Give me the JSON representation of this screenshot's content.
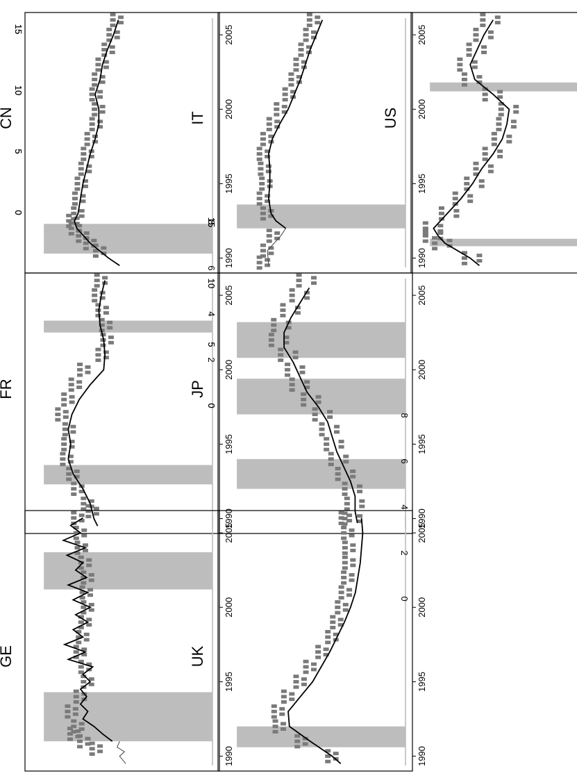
{
  "chart_data": [
    {
      "type": "scatter",
      "title": "CN",
      "ylim": [
        0,
        15
      ],
      "yticks": [
        0,
        5,
        10,
        15
      ],
      "xticks": [
        1990,
        1995,
        2000,
        2005
      ],
      "bands": [
        [
          1990.3,
          1992.3
        ]
      ],
      "points": [
        [
          1990.5,
          9.2
        ],
        [
          1991,
          10
        ],
        [
          1991.5,
          10.6
        ],
        [
          1992,
          11.2
        ],
        [
          1992.5,
          11.4
        ],
        [
          1993,
          11
        ],
        [
          1994,
          10.9
        ],
        [
          1995,
          10.7
        ],
        [
          1996,
          10.4
        ],
        [
          1997,
          10.2
        ],
        [
          1998,
          9.9
        ],
        [
          1999,
          9.5
        ],
        [
          2000,
          9.3
        ],
        [
          2001,
          9.5
        ],
        [
          2002,
          9.3
        ],
        [
          2003,
          9
        ],
        [
          2004,
          8.5
        ],
        [
          2005,
          8.1
        ],
        [
          2006,
          7.8
        ]
      ],
      "line": [
        [
          1989.5,
          7.6
        ],
        [
          1990,
          8.5
        ],
        [
          1991,
          10
        ],
        [
          1992,
          11.1
        ],
        [
          1992.5,
          11.3
        ],
        [
          1993,
          11
        ],
        [
          1994,
          10.8
        ],
        [
          1995,
          10.6
        ],
        [
          1996,
          10.3
        ],
        [
          1997,
          10
        ],
        [
          1998,
          9.6
        ],
        [
          1999,
          9.3
        ],
        [
          2000,
          9.3
        ],
        [
          2001,
          9.6
        ],
        [
          2002,
          9.2
        ],
        [
          2003,
          9
        ],
        [
          2004,
          8.6
        ],
        [
          2005,
          8.1
        ],
        [
          2006,
          7.7
        ]
      ],
      "thinline": []
    },
    {
      "type": "scatter",
      "title": "FR",
      "ylim": [
        0,
        15
      ],
      "yticks": [
        0,
        5,
        10,
        15
      ],
      "xticks": [
        1990,
        1995,
        2000,
        2005
      ],
      "bands": [
        [
          1992.3,
          1993.6
        ],
        [
          2002.5,
          2003.3
        ]
      ],
      "points": [
        [
          1990.5,
          9.8
        ],
        [
          1991,
          10.2
        ],
        [
          1992,
          11
        ],
        [
          1993,
          11.4
        ],
        [
          1994,
          11.9
        ],
        [
          1995,
          11.8
        ],
        [
          1996,
          11.7
        ],
        [
          1997,
          12.3
        ],
        [
          1998,
          11.8
        ],
        [
          1999,
          11.2
        ],
        [
          2000,
          10.5
        ],
        [
          2001,
          9
        ],
        [
          2002,
          8.6
        ],
        [
          2003,
          8.7
        ],
        [
          2004,
          9
        ],
        [
          2005,
          9.3
        ],
        [
          2006,
          9.1
        ]
      ],
      "line": [
        [
          1989.5,
          9.4
        ],
        [
          1990,
          9.7
        ],
        [
          1991,
          10
        ],
        [
          1992,
          10.6
        ],
        [
          1993,
          11.4
        ],
        [
          1994,
          11.8
        ],
        [
          1995,
          11.6
        ],
        [
          1996,
          11.8
        ],
        [
          1997,
          11.5
        ],
        [
          1998,
          10.9
        ],
        [
          1999,
          10
        ],
        [
          2000,
          8.9
        ],
        [
          2001,
          8.8
        ],
        [
          2002,
          8.9
        ],
        [
          2003,
          9.2
        ],
        [
          2004,
          9.3
        ],
        [
          2005,
          9.1
        ],
        [
          2006,
          8.8
        ]
      ],
      "thinline": []
    },
    {
      "type": "scatter",
      "title": "GE",
      "ylim": [
        0,
        15
      ],
      "yticks": [
        0,
        5,
        10,
        15
      ],
      "xticks": [
        1990,
        1995,
        2000,
        2005
      ],
      "bands": [
        [
          1991,
          1994.3
        ],
        [
          2001.2,
          2003.7
        ]
      ],
      "points": [
        [
          1990.5,
          9.5
        ],
        [
          1991,
          10.5
        ],
        [
          1991.5,
          11.3
        ],
        [
          1992,
          11
        ],
        [
          1993,
          11.5
        ],
        [
          1994,
          10.8
        ],
        [
          1995,
          10.2
        ],
        [
          1996,
          10.4
        ],
        [
          1997,
          10.8
        ],
        [
          1998,
          10.6
        ],
        [
          1999,
          10.4
        ],
        [
          2000,
          10.2
        ],
        [
          2001,
          10.3
        ],
        [
          2002,
          10.2
        ],
        [
          2003,
          10.4
        ],
        [
          2004,
          10.7
        ],
        [
          2005,
          10.8
        ],
        [
          2006,
          11
        ]
      ],
      "line": [
        [
          1991,
          8.2
        ],
        [
          1991.5,
          9
        ],
        [
          1992,
          9.7
        ],
        [
          1992.5,
          10.6
        ],
        [
          1993,
          10.2
        ],
        [
          1993.5,
          10.8
        ],
        [
          1994,
          10.3
        ],
        [
          1994.5,
          10.8
        ],
        [
          1995,
          10
        ],
        [
          1995.5,
          10.6
        ],
        [
          1996,
          9.8
        ],
        [
          1996.5,
          11.8
        ],
        [
          1997,
          10.4
        ],
        [
          1997.5,
          12.1
        ],
        [
          1998,
          10.6
        ],
        [
          1998.5,
          11.4
        ],
        [
          1999,
          10.2
        ],
        [
          1999.5,
          11.2
        ],
        [
          2000,
          10
        ],
        [
          2000.5,
          11.4
        ],
        [
          2001,
          10.2
        ],
        [
          2001.5,
          11.8
        ],
        [
          2002,
          10.3
        ],
        [
          2002.5,
          11.2
        ],
        [
          2003,
          10.6
        ],
        [
          2003.5,
          11.9
        ],
        [
          2004,
          10.4
        ],
        [
          2004.5,
          12.2
        ],
        [
          2005,
          10.8
        ],
        [
          2005.5,
          11.6
        ],
        [
          2006,
          10.6
        ]
      ],
      "thinline": [
        [
          1989.5,
          7.1
        ],
        [
          1990,
          7.6
        ],
        [
          1990.3,
          7.2
        ],
        [
          1990.6,
          7.8
        ],
        [
          1991,
          7.6
        ]
      ]
    },
    {
      "type": "scatter",
      "title": "IT",
      "ylim": [
        0,
        15
      ],
      "yticks": [
        0,
        5,
        10,
        15
      ],
      "xticks": [
        1990,
        1995,
        2000,
        2005
      ],
      "bands": [
        [
          1992,
          1993.6
        ]
      ],
      "points": [
        [
          1989.7,
          11.6
        ],
        [
          1990.5,
          11.3
        ],
        [
          1991.5,
          10.8
        ],
        [
          1993,
          11.3
        ],
        [
          1994,
          11.6
        ],
        [
          1995,
          11.4
        ],
        [
          1996,
          11.5
        ],
        [
          1997,
          11.6
        ],
        [
          1998,
          11.3
        ],
        [
          1999,
          10.8
        ],
        [
          2000,
          10.2
        ],
        [
          2001,
          9.5
        ],
        [
          2002,
          9
        ],
        [
          2003,
          8.6
        ],
        [
          2004,
          8.2
        ],
        [
          2005,
          7.8
        ],
        [
          2006,
          7.5
        ]
      ],
      "line": [
        [
          1992,
          9.8
        ],
        [
          1992.5,
          10.6
        ],
        [
          1993,
          11
        ],
        [
          1994,
          11.2
        ],
        [
          1995,
          11.1
        ],
        [
          1996,
          11.1
        ],
        [
          1997,
          11.2
        ],
        [
          1998,
          10.9
        ],
        [
          1999,
          10.3
        ],
        [
          2000,
          9.6
        ],
        [
          2001,
          9.1
        ],
        [
          2002,
          8.6
        ],
        [
          2003,
          8.2
        ],
        [
          2004,
          7.8
        ],
        [
          2005,
          7.3
        ],
        [
          2006,
          6.8
        ]
      ],
      "thinline": [
        [
          1989.5,
          11.2
        ],
        [
          1990.5,
          11.3
        ],
        [
          1991.5,
          10.2
        ],
        [
          1992,
          9.8
        ]
      ]
    },
    {
      "type": "scatter",
      "title": "JP",
      "ylim": [
        0,
        8
      ],
      "yticks": [
        0,
        2,
        4,
        6,
        8
      ],
      "xticks": [
        1990,
        1995,
        2000,
        2005
      ],
      "bands": [
        [
          1992,
          1994
        ],
        [
          1997,
          1999.4
        ],
        [
          2000.8,
          2003.2
        ]
      ],
      "points": [
        [
          1990,
          2.3
        ],
        [
          1991,
          2.2
        ],
        [
          1992,
          2.3
        ],
        [
          1993,
          2.6
        ],
        [
          1994,
          2.9
        ],
        [
          1995,
          3.1
        ],
        [
          1996,
          3.3
        ],
        [
          1997,
          3.6
        ],
        [
          1998,
          4.1
        ],
        [
          1999,
          4.6
        ],
        [
          2000,
          4.8
        ],
        [
          2001,
          5.1
        ],
        [
          2002,
          5.5
        ],
        [
          2003,
          5.4
        ],
        [
          2004,
          5
        ],
        [
          2005,
          4.6
        ],
        [
          2006,
          4.3
        ]
      ],
      "line": [
        [
          1989.7,
          2.1
        ],
        [
          1990.5,
          2.2
        ],
        [
          1991.5,
          2.2
        ],
        [
          1992.5,
          2.4
        ],
        [
          1993.5,
          2.7
        ],
        [
          1994.5,
          3
        ],
        [
          1995.5,
          3.2
        ],
        [
          1996.5,
          3.4
        ],
        [
          1997.5,
          3.8
        ],
        [
          1998.5,
          4.3
        ],
        [
          1999.5,
          4.6
        ],
        [
          2000.5,
          4.9
        ],
        [
          2001.5,
          5.3
        ],
        [
          2002.5,
          5.3
        ],
        [
          2003.5,
          5
        ],
        [
          2004.5,
          4.6
        ],
        [
          2005.5,
          4.2
        ]
      ],
      "thinline": []
    },
    {
      "type": "scatter",
      "title": "UK",
      "ylim": [
        0,
        15
      ],
      "yticks": [
        0,
        5,
        10,
        15
      ],
      "xticks": [
        1990,
        1995,
        2000,
        2005
      ],
      "bands": [
        [
          1990.6,
          1992
        ]
      ],
      "points": [
        [
          1990,
          6
        ],
        [
          1991,
          8.5
        ],
        [
          1992,
          10.3
        ],
        [
          1993,
          10.4
        ],
        [
          1994,
          9.6
        ],
        [
          1995,
          8.6
        ],
        [
          1996,
          7.8
        ],
        [
          1997,
          6.8
        ],
        [
          1998,
          6
        ],
        [
          1999,
          5.6
        ],
        [
          2000,
          5.2
        ],
        [
          2001,
          4.9
        ],
        [
          2002,
          4.7
        ],
        [
          2003,
          4.6
        ],
        [
          2004,
          4.6
        ],
        [
          2005,
          4.7
        ],
        [
          2006,
          4.9
        ]
      ],
      "line": [
        [
          1989.5,
          5.3
        ],
        [
          1990,
          6
        ],
        [
          1991,
          7.8
        ],
        [
          1992,
          9.5
        ],
        [
          1993,
          9.6
        ],
        [
          1994,
          8.6
        ],
        [
          1995,
          7.6
        ],
        [
          1996,
          6.9
        ],
        [
          1997,
          6.2
        ],
        [
          1998,
          5.6
        ],
        [
          1999,
          5
        ],
        [
          2000,
          4.5
        ],
        [
          2001,
          4.1
        ],
        [
          2002,
          3.9
        ],
        [
          2003,
          3.7
        ],
        [
          2004,
          3.6
        ],
        [
          2005,
          3.5
        ],
        [
          2006,
          3.6
        ]
      ],
      "thinline": []
    },
    {
      "type": "scatter",
      "title": "US",
      "ylim": [
        0,
        8
      ],
      "yticks": [
        0,
        2,
        4,
        6,
        8
      ],
      "xticks": [
        1990,
        1995,
        2000,
        2005
      ],
      "bands": [
        [
          1990.8,
          1991.3
        ],
        [
          2001.2,
          2001.8
        ]
      ],
      "points": [
        [
          1990,
          5.5
        ],
        [
          1991,
          6.8
        ],
        [
          1991.5,
          7.2
        ],
        [
          1992,
          7.2
        ],
        [
          1993,
          6.5
        ],
        [
          1994,
          5.9
        ],
        [
          1995,
          5.4
        ],
        [
          1996,
          5
        ],
        [
          1997,
          4.6
        ],
        [
          1998,
          4.2
        ],
        [
          1999,
          4
        ],
        [
          2000,
          3.9
        ],
        [
          2001,
          4.6
        ],
        [
          2002,
          5.5
        ],
        [
          2003,
          5.7
        ],
        [
          2004,
          5.3
        ],
        [
          2005,
          5
        ],
        [
          2006,
          4.7
        ]
      ],
      "line": [
        [
          1989.5,
          5.2
        ],
        [
          1990,
          5.6
        ],
        [
          1991,
          6.7
        ],
        [
          1991.5,
          7
        ],
        [
          1992,
          7.2
        ],
        [
          1993,
          6.6
        ],
        [
          1994,
          6
        ],
        [
          1995,
          5.5
        ],
        [
          1996,
          5.1
        ],
        [
          1997,
          4.6
        ],
        [
          1998,
          4.2
        ],
        [
          1999,
          4
        ],
        [
          2000,
          3.9
        ],
        [
          2001,
          4.6
        ],
        [
          2002,
          5.4
        ],
        [
          2003,
          5.6
        ],
        [
          2004,
          5.3
        ],
        [
          2005,
          5
        ],
        [
          2006,
          4.6
        ]
      ],
      "thinline": []
    }
  ]
}
